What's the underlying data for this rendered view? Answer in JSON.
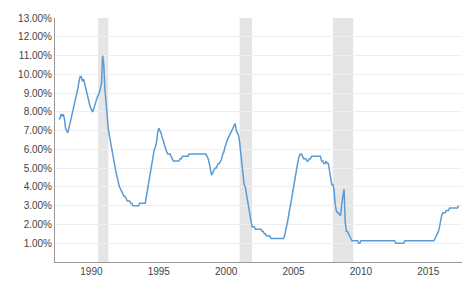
{
  "chart_data": {
    "type": "line",
    "color": "#5b9bd5",
    "x": [
      1987.583,
      1987.667,
      1987.75,
      1987.833,
      1987.917,
      1988.0,
      1988.083,
      1988.167,
      1988.25,
      1988.333,
      1988.417,
      1988.5,
      1988.583,
      1988.667,
      1988.75,
      1988.833,
      1988.917,
      1989.0,
      1989.083,
      1989.167,
      1989.25,
      1989.333,
      1989.417,
      1989.5,
      1989.583,
      1989.667,
      1989.75,
      1989.833,
      1989.917,
      1990.0,
      1990.083,
      1990.167,
      1990.25,
      1990.333,
      1990.417,
      1990.5,
      1990.583,
      1990.667,
      1990.75,
      1990.833,
      1990.917,
      1991.0,
      1991.083,
      1991.167,
      1991.25,
      1991.333,
      1991.417,
      1991.5,
      1991.583,
      1991.667,
      1991.75,
      1991.833,
      1991.917,
      1992.0,
      1992.083,
      1992.167,
      1992.25,
      1992.333,
      1992.417,
      1992.5,
      1992.583,
      1992.667,
      1992.75,
      1992.833,
      1992.917,
      1993.0,
      1993.083,
      1993.167,
      1993.25,
      1993.333,
      1993.417,
      1993.5,
      1993.583,
      1993.667,
      1993.75,
      1993.833,
      1993.917,
      1994.0,
      1994.083,
      1994.167,
      1994.25,
      1994.333,
      1994.417,
      1994.5,
      1994.583,
      1994.667,
      1994.75,
      1994.833,
      1994.917,
      1995.0,
      1995.083,
      1995.167,
      1995.25,
      1995.333,
      1995.417,
      1995.5,
      1995.583,
      1995.667,
      1995.75,
      1995.833,
      1995.917,
      1996.0,
      1996.083,
      1996.167,
      1996.25,
      1996.333,
      1996.417,
      1996.5,
      1996.583,
      1996.667,
      1996.75,
      1996.833,
      1996.917,
      1997.0,
      1997.083,
      1997.167,
      1997.25,
      1997.333,
      1997.417,
      1997.5,
      1997.583,
      1997.667,
      1997.75,
      1997.833,
      1997.917,
      1998.0,
      1998.083,
      1998.167,
      1998.25,
      1998.333,
      1998.417,
      1998.5,
      1998.583,
      1998.667,
      1998.75,
      1998.833,
      1998.917,
      1999.0,
      1999.083,
      1999.167,
      1999.25,
      1999.333,
      1999.417,
      1999.5,
      1999.583,
      1999.667,
      1999.75,
      1999.833,
      1999.917,
      2000.0,
      2000.083,
      2000.167,
      2000.25,
      2000.333,
      2000.417,
      2000.5,
      2000.583,
      2000.667,
      2000.75,
      2000.833,
      2000.917,
      2001.0,
      2001.083,
      2001.167,
      2001.25,
      2001.333,
      2001.417,
      2001.5,
      2001.583,
      2001.667,
      2001.75,
      2001.833,
      2001.917,
      2002.0,
      2002.083,
      2002.167,
      2002.25,
      2002.333,
      2002.417,
      2002.5,
      2002.583,
      2002.667,
      2002.75,
      2002.833,
      2002.917,
      2003.0,
      2003.083,
      2003.167,
      2003.25,
      2003.333,
      2003.417,
      2003.5,
      2003.583,
      2003.667,
      2003.75,
      2003.833,
      2003.917,
      2004.0,
      2004.083,
      2004.167,
      2004.25,
      2004.333,
      2004.417,
      2004.5,
      2004.583,
      2004.667,
      2004.75,
      2004.833,
      2004.917,
      2005.0,
      2005.083,
      2005.167,
      2005.25,
      2005.333,
      2005.417,
      2005.5,
      2005.583,
      2005.667,
      2005.75,
      2005.833,
      2005.917,
      2006.0,
      2006.083,
      2006.167,
      2006.25,
      2006.333,
      2006.417,
      2006.5,
      2006.583,
      2006.667,
      2006.75,
      2006.833,
      2006.917,
      2007.0,
      2007.083,
      2007.167,
      2007.25,
      2007.333,
      2007.417,
      2007.5,
      2007.583,
      2007.667,
      2007.75,
      2007.833,
      2007.917,
      2008.0,
      2008.083,
      2008.167,
      2008.25,
      2008.333,
      2008.417,
      2008.5,
      2008.583,
      2008.667,
      2008.75,
      2008.833,
      2008.917,
      2009.0,
      2009.083,
      2009.167,
      2009.25,
      2009.333,
      2009.417,
      2009.5,
      2009.583,
      2009.667,
      2009.75,
      2009.833,
      2009.917,
      2010.0,
      2010.083,
      2010.167,
      2010.25,
      2010.333,
      2010.417,
      2010.5,
      2010.583,
      2010.667,
      2010.75,
      2010.833,
      2010.917,
      2011.0,
      2011.083,
      2011.167,
      2011.25,
      2011.333,
      2011.417,
      2011.5,
      2011.583,
      2011.667,
      2011.75,
      2011.833,
      2011.917,
      2012.0,
      2012.083,
      2012.167,
      2012.25,
      2012.333,
      2012.417,
      2012.5,
      2012.583,
      2012.667,
      2012.75,
      2012.833,
      2012.917,
      2013.0,
      2013.083,
      2013.167,
      2013.25,
      2013.333,
      2013.417,
      2013.5,
      2013.583,
      2013.667,
      2013.75,
      2013.833,
      2013.917,
      2014.0,
      2014.083,
      2014.167,
      2014.25,
      2014.333,
      2014.417,
      2014.5,
      2014.583,
      2014.667,
      2014.75,
      2014.833,
      2014.917,
      2015.0,
      2015.083,
      2015.167,
      2015.25,
      2015.333,
      2015.417,
      2015.5,
      2015.583,
      2015.667,
      2015.75,
      2015.833,
      2015.917,
      2016.0,
      2016.083,
      2016.167,
      2016.25,
      2016.333,
      2016.417,
      2016.5,
      2016.583,
      2016.667,
      2016.75,
      2016.833,
      2016.917,
      2017.0,
      2017.083,
      2017.167,
      2017.25
    ],
    "values": [
      0.0763,
      0.0763,
      0.0788,
      0.0775,
      0.0788,
      0.0763,
      0.0713,
      0.07,
      0.0688,
      0.0713,
      0.0738,
      0.0763,
      0.0788,
      0.0813,
      0.0838,
      0.0875,
      0.09,
      0.0925,
      0.0963,
      0.0988,
      0.0988,
      0.0963,
      0.0975,
      0.095,
      0.0913,
      0.0888,
      0.0863,
      0.0838,
      0.0825,
      0.0813,
      0.08,
      0.0813,
      0.0838,
      0.0863,
      0.0875,
      0.0888,
      0.09,
      0.0925,
      0.095,
      0.11,
      0.105,
      0.0925,
      0.0838,
      0.0763,
      0.0713,
      0.0675,
      0.0638,
      0.06,
      0.0575,
      0.0538,
      0.05,
      0.0475,
      0.045,
      0.0413,
      0.04,
      0.0388,
      0.0375,
      0.0363,
      0.035,
      0.035,
      0.0338,
      0.0325,
      0.0325,
      0.0325,
      0.0313,
      0.0313,
      0.03,
      0.03,
      0.03,
      0.03,
      0.03,
      0.03,
      0.0313,
      0.0313,
      0.0313,
      0.0313,
      0.0313,
      0.0313,
      0.035,
      0.0388,
      0.0425,
      0.0463,
      0.05,
      0.0538,
      0.0575,
      0.06,
      0.0613,
      0.0638,
      0.0688,
      0.0713,
      0.07,
      0.0688,
      0.0663,
      0.065,
      0.0625,
      0.06,
      0.0588,
      0.0575,
      0.0575,
      0.0575,
      0.0563,
      0.055,
      0.0538,
      0.0538,
      0.0538,
      0.0538,
      0.0538,
      0.0538,
      0.055,
      0.055,
      0.0563,
      0.0563,
      0.0563,
      0.0563,
      0.0563,
      0.0563,
      0.0575,
      0.0575,
      0.0575,
      0.0575,
      0.0575,
      0.0575,
      0.0575,
      0.0575,
      0.0575,
      0.0575,
      0.0575,
      0.0575,
      0.0575,
      0.0575,
      0.0575,
      0.0575,
      0.0563,
      0.055,
      0.0525,
      0.0488,
      0.0463,
      0.0475,
      0.0488,
      0.05,
      0.05,
      0.0513,
      0.0525,
      0.0525,
      0.0538,
      0.055,
      0.0575,
      0.0588,
      0.0613,
      0.0638,
      0.065,
      0.0663,
      0.0675,
      0.0688,
      0.07,
      0.0713,
      0.0725,
      0.0738,
      0.07,
      0.0688,
      0.0675,
      0.0638,
      0.0575,
      0.0513,
      0.045,
      0.0413,
      0.04,
      0.0363,
      0.0325,
      0.03,
      0.025,
      0.0213,
      0.0188,
      0.0188,
      0.0188,
      0.0175,
      0.0175,
      0.0175,
      0.0175,
      0.0175,
      0.0175,
      0.0163,
      0.0163,
      0.015,
      0.015,
      0.0138,
      0.0138,
      0.0138,
      0.0138,
      0.0125,
      0.0125,
      0.0125,
      0.0125,
      0.0125,
      0.0125,
      0.0125,
      0.0125,
      0.0125,
      0.0125,
      0.0125,
      0.0125,
      0.0138,
      0.0163,
      0.0188,
      0.0225,
      0.0263,
      0.0288,
      0.0325,
      0.0363,
      0.04,
      0.045,
      0.0488,
      0.0513,
      0.0538,
      0.0563,
      0.0575,
      0.0575,
      0.0563,
      0.055,
      0.055,
      0.055,
      0.0538,
      0.0538,
      0.055,
      0.055,
      0.0563,
      0.0563,
      0.0563,
      0.0563,
      0.0563,
      0.0563,
      0.0563,
      0.0563,
      0.0563,
      0.0538,
      0.0538,
      0.0525,
      0.0525,
      0.0538,
      0.0525,
      0.0525,
      0.0488,
      0.0438,
      0.0413,
      0.0413,
      0.0388,
      0.0313,
      0.0275,
      0.0263,
      0.0263,
      0.025,
      0.025,
      0.0313,
      0.0363,
      0.0388,
      0.0213,
      0.0163,
      0.0163,
      0.015,
      0.0138,
      0.0125,
      0.0113,
      0.0113,
      0.0113,
      0.0113,
      0.0113,
      0.0113,
      0.01,
      0.01,
      0.0113,
      0.0113,
      0.0113,
      0.0113,
      0.0113,
      0.0113,
      0.0113,
      0.0113,
      0.0113,
      0.0113,
      0.0113,
      0.0113,
      0.0113,
      0.0113,
      0.0113,
      0.0113,
      0.0113,
      0.0113,
      0.0113,
      0.0113,
      0.0113,
      0.0113,
      0.0113,
      0.0113,
      0.0113,
      0.0113,
      0.0113,
      0.0113,
      0.0113,
      0.0113,
      0.0113,
      0.01,
      0.01,
      0.01,
      0.01,
      0.01,
      0.01,
      0.01,
      0.01,
      0.0113,
      0.0113,
      0.0113,
      0.0113,
      0.0113,
      0.0113,
      0.0113,
      0.0113,
      0.0113,
      0.0113,
      0.0113,
      0.0113,
      0.0113,
      0.0113,
      0.0113,
      0.0113,
      0.0113,
      0.0113,
      0.0113,
      0.0113,
      0.0113,
      0.0113,
      0.0113,
      0.0113,
      0.0113,
      0.0113,
      0.0113,
      0.0125,
      0.0138,
      0.015,
      0.0163,
      0.0188,
      0.0225,
      0.025,
      0.0263,
      0.0263,
      0.0263,
      0.0275,
      0.0275,
      0.0275,
      0.0288,
      0.0288,
      0.0288,
      0.0288,
      0.0288,
      0.0288,
      0.0288,
      0.0288,
      0.03
    ],
    "recessions": [
      [
        1990.5,
        1991.25
      ],
      [
        2001.0,
        2001.92
      ],
      [
        2007.92,
        2009.42
      ]
    ],
    "recession_color": "#d3d3d3",
    "xlim": [
      1987.3,
      2017.5
    ],
    "xticks": [
      1990,
      1995,
      2000,
      2005,
      2010,
      2015
    ],
    "ylim": [
      0.0,
      0.13
    ],
    "yticks": [
      {
        "value": 0.01,
        "label": "1.00%"
      },
      {
        "value": 0.02,
        "label": "2.00%"
      },
      {
        "value": 0.03,
        "label": "3.00%"
      },
      {
        "value": 0.04,
        "label": "4.00%"
      },
      {
        "value": 0.05,
        "label": "5.00%"
      },
      {
        "value": 0.06,
        "label": "6.00%"
      },
      {
        "value": 0.07,
        "label": "7.00%"
      },
      {
        "value": 0.08,
        "label": "8.00%"
      },
      {
        "value": 0.09,
        "label": "9.00%"
      },
      {
        "value": 0.1,
        "label": "10.00%"
      },
      {
        "value": 0.11,
        "label": "11.00%"
      },
      {
        "value": 0.12,
        "label": "12.00%"
      },
      {
        "value": 0.13,
        "label": "13.00%"
      }
    ],
    "grid": true
  }
}
